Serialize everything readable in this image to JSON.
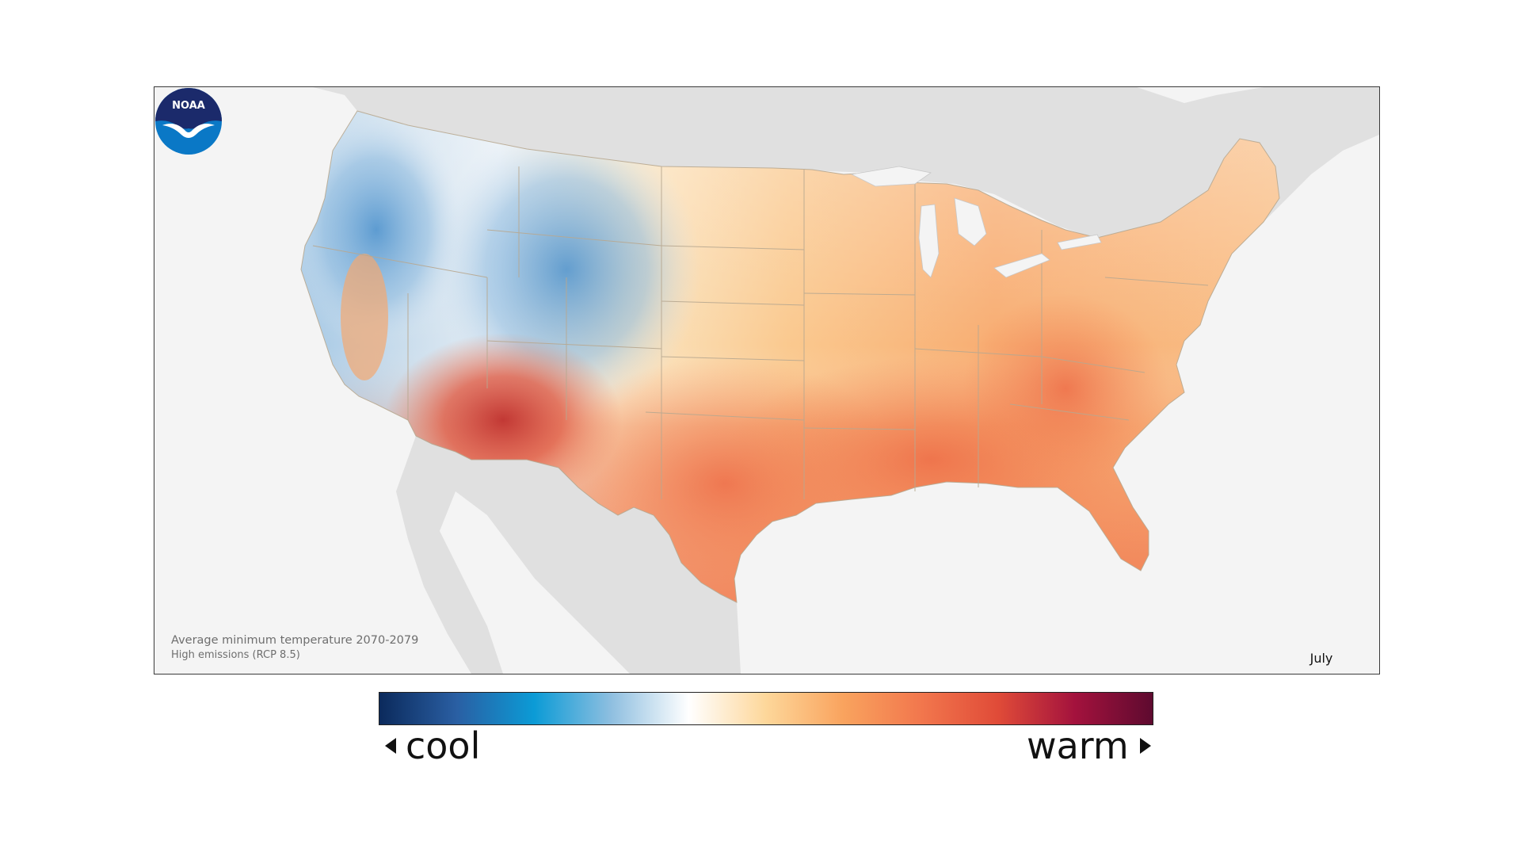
{
  "caption": {
    "title": "Average minimum temperature 2070-2079",
    "scenario": "High emissions (RCP 8.5)"
  },
  "logo": {
    "text": "NOAA",
    "icon": "noaa-logo-icon"
  },
  "month": "July",
  "legend": {
    "low_label": "cool",
    "high_label": "warm",
    "colors": [
      "#0b2a5c",
      "#2a5fa3",
      "#0b9bd6",
      "#8fbfe0",
      "#ffffff",
      "#fdd79a",
      "#f9a35e",
      "#f2774d",
      "#e04b38",
      "#a3123d",
      "#5e0a2f"
    ]
  },
  "colors": {
    "land_background": "#e0e0e0",
    "ocean": "#f4f4f4",
    "state_borders": "#b8a890"
  }
}
